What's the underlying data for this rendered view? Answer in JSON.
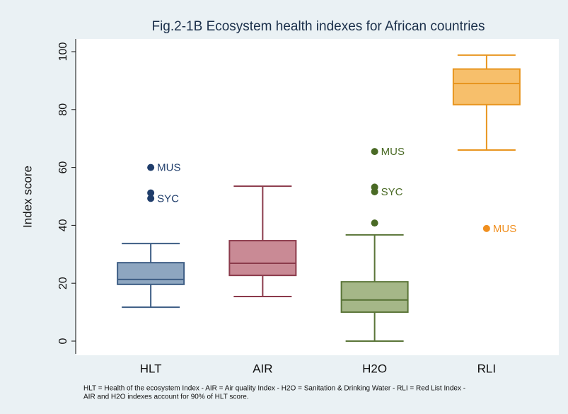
{
  "chart_data": {
    "type": "box",
    "title": "Fig.2-1B  Ecosystem health indexes for African countries",
    "y_label": "Index score",
    "footnote": [
      "HLT = Health of the ecosystem Index - AIR = Air quality Index - H2O = Sanitation & Drinking Water - RLI = Red List Index -",
      "AIR and H2O indexes account for 90% of HLT score."
    ],
    "categories": [
      "HLT",
      "AIR",
      "H2O",
      "RLI"
    ],
    "ylim": [
      0,
      100
    ],
    "yticks": [
      0,
      20,
      40,
      60,
      80,
      100
    ],
    "series": [
      {
        "name": "HLT",
        "color": "#8ea6c0",
        "edge": "#3d5d84",
        "outlier_color": "#1f3d6b",
        "whisker_low": 11.7,
        "q1": 19.6,
        "median": 21.3,
        "q3": 27.1,
        "whisker_high": 33.7,
        "outliers": [
          {
            "value": 60,
            "label": "MUS"
          },
          {
            "value": 51.2
          },
          {
            "value": 49.3,
            "label": "SYC"
          }
        ]
      },
      {
        "name": "AIR",
        "color": "#c98a95",
        "edge": "#8b3a4b",
        "outlier_color": "#8b3a4b",
        "whisker_low": 15.4,
        "q1": 22.7,
        "median": 26.9,
        "q3": 34.7,
        "whisker_high": 53.5,
        "outliers": []
      },
      {
        "name": "H2O",
        "color": "#a5b788",
        "edge": "#5a7538",
        "outlier_color": "#4a6a25",
        "whisker_low": 0,
        "q1": 10,
        "median": 14.2,
        "q3": 20.5,
        "whisker_high": 36.7,
        "outliers": [
          {
            "value": 65.5,
            "label": "MUS"
          },
          {
            "value": 53.2
          },
          {
            "value": 51.6,
            "label": "SYC"
          },
          {
            "value": 40.8
          }
        ]
      },
      {
        "name": "RLI",
        "color": "#f7bf6b",
        "edge": "#e8951f",
        "outlier_color": "#f08f1f",
        "whisker_low": 66,
        "q1": 81.7,
        "median": 89,
        "q3": 94,
        "whisker_high": 98.8,
        "outliers": [
          {
            "value": 38.9,
            "label": "MUS"
          }
        ]
      }
    ]
  }
}
